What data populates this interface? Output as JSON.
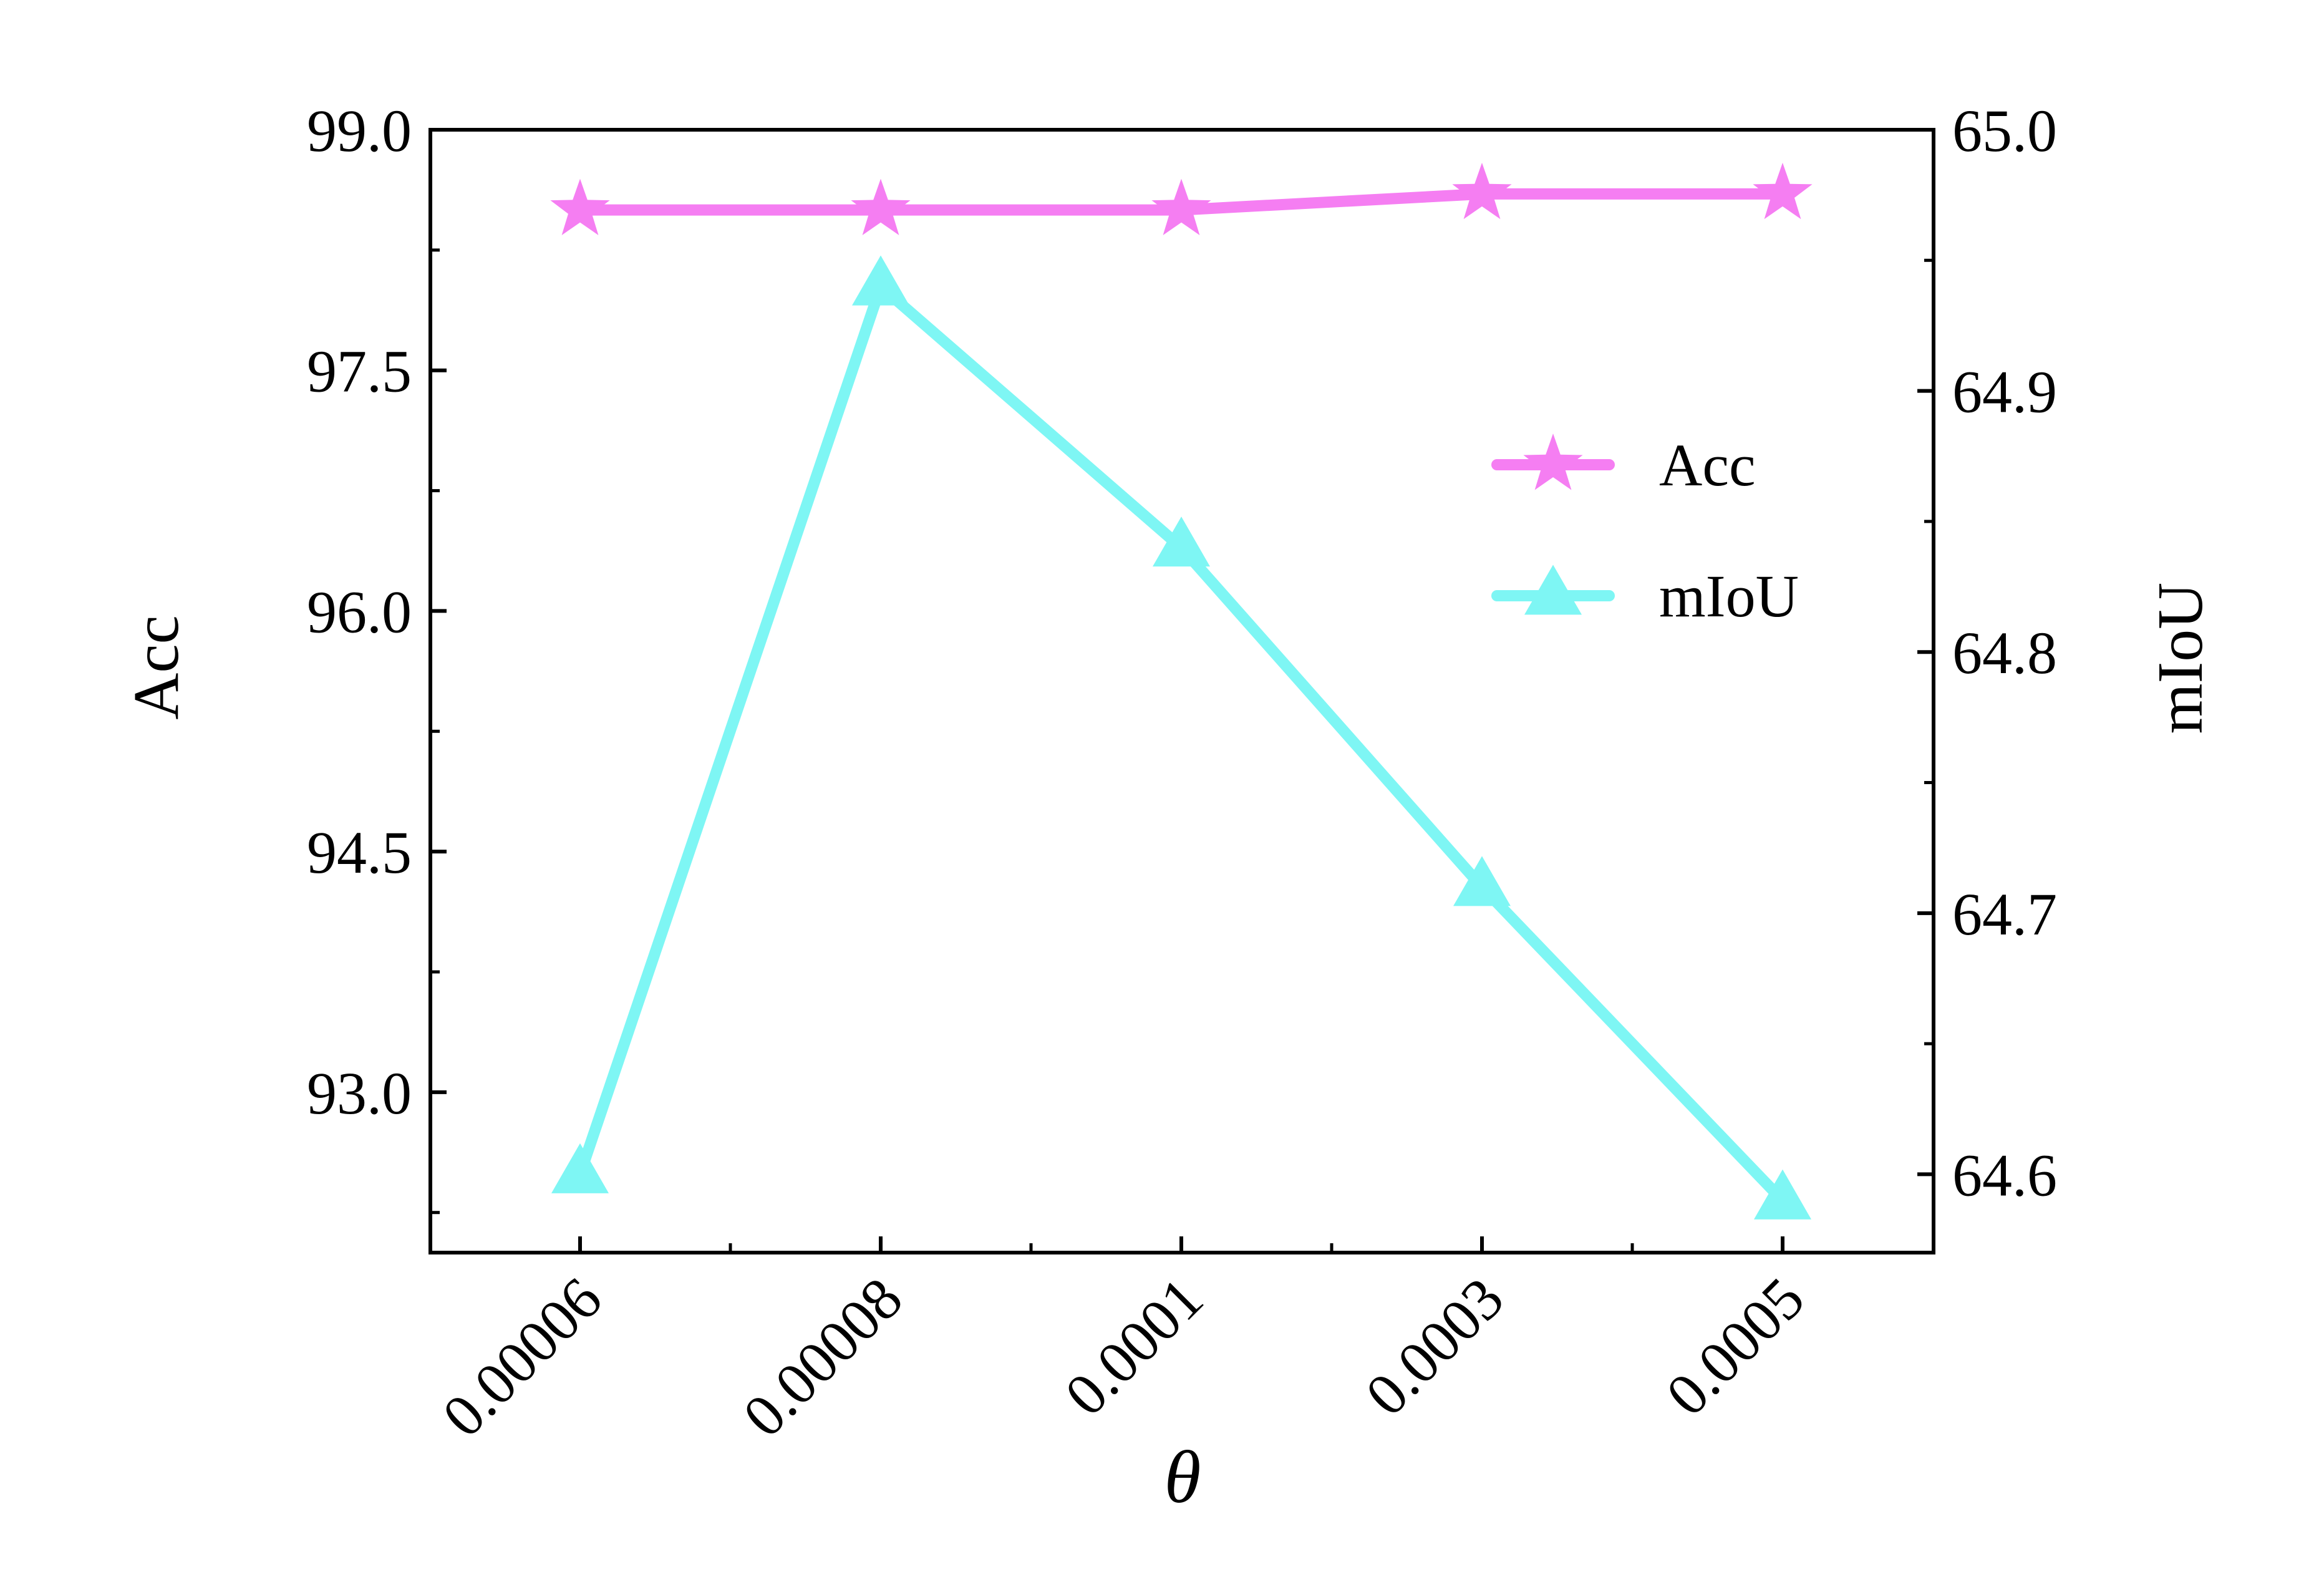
{
  "chart_data": {
    "type": "line",
    "categories": [
      "0.00006",
      "0.00008",
      "0.0001",
      "0.0003",
      "0.0005"
    ],
    "xlabel": "θ",
    "ylabel_left": "Acc",
    "ylabel_right": "mIoU",
    "ylim_left": [
      92.0,
      99.0
    ],
    "ylim_right": [
      64.57,
      65.0
    ],
    "yticks_left": [
      "99.0",
      "97.5",
      "96.0",
      "94.5",
      "93.0"
    ],
    "yticks_right": [
      "65.0",
      "64.9",
      "64.8",
      "64.7",
      "64.6"
    ],
    "grid": false,
    "legend_position": "right-upper",
    "series": [
      {
        "name": "Acc",
        "axis": "left",
        "marker": "star",
        "color": "#f57ef2",
        "values": [
          98.5,
          98.5,
          98.5,
          98.6,
          98.6
        ]
      },
      {
        "name": "mIoU",
        "axis": "right",
        "marker": "triangle",
        "color": "#7ef6f4",
        "values": [
          64.6,
          64.94,
          64.84,
          64.71,
          64.59
        ]
      }
    ]
  }
}
